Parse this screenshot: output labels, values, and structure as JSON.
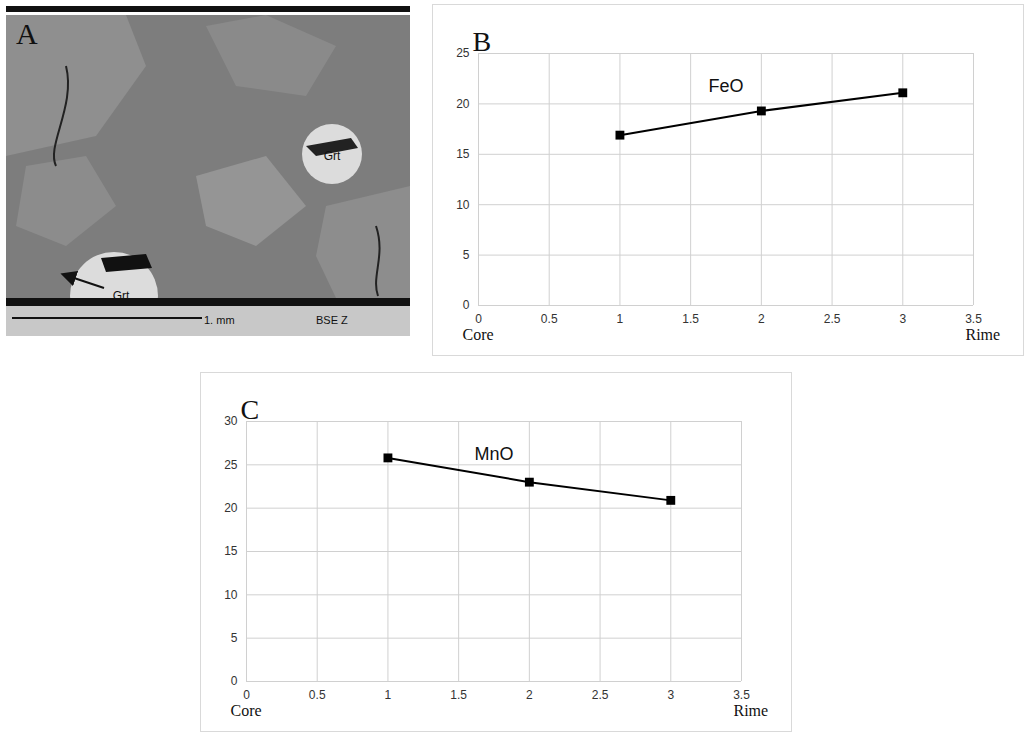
{
  "chart_data": [
    {
      "type": "image",
      "title": "A",
      "annotations": [
        "Grt",
        "Grt"
      ],
      "scale_bar_label": "1. mm",
      "footer_label": "BSE Z"
    },
    {
      "type": "line",
      "title": "B",
      "annotation": "FeO",
      "x_start_label": "Core",
      "x_end_label": "Rime",
      "x": [
        1,
        2,
        3
      ],
      "values": [
        16.9,
        19.3,
        21.1
      ],
      "color": "#000000",
      "marker": "square",
      "xlim": [
        0,
        3.5
      ],
      "xticks": [
        0,
        0.5,
        1,
        1.5,
        2,
        2.5,
        3,
        3.5
      ],
      "ylim": [
        0,
        25
      ],
      "yticks": [
        0,
        5,
        10,
        15,
        20,
        25
      ],
      "grid": true
    },
    {
      "type": "line",
      "title": "C",
      "annotation": "MnO",
      "x_start_label": "Core",
      "x_end_label": "Rime",
      "x": [
        1,
        2,
        3
      ],
      "values": [
        25.8,
        23.0,
        20.9
      ],
      "color": "#000000",
      "marker": "square",
      "xlim": [
        0,
        3.5
      ],
      "xticks": [
        0,
        0.5,
        1,
        1.5,
        2,
        2.5,
        3,
        3.5
      ],
      "ylim": [
        0,
        30
      ],
      "yticks": [
        0,
        5,
        10,
        15,
        20,
        25,
        30
      ],
      "grid": true
    }
  ]
}
